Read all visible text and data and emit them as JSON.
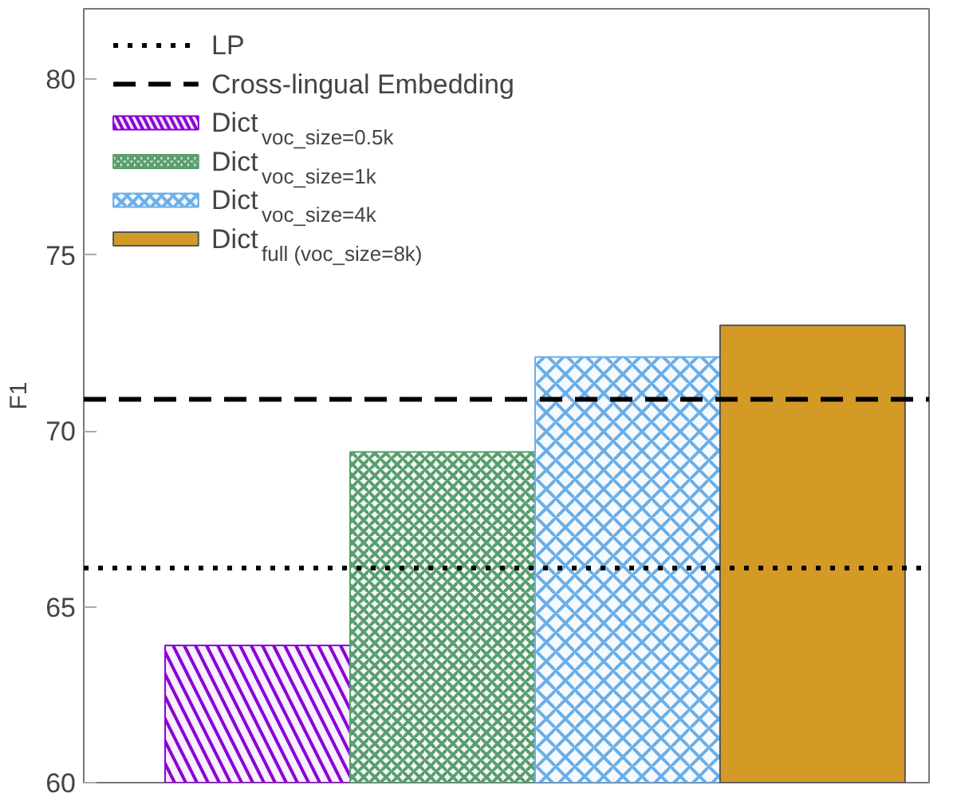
{
  "chart_data": {
    "type": "bar",
    "ylabel": "F1",
    "categories": [
      null,
      null,
      null,
      null
    ],
    "series": [
      {
        "name": "Dict$_{voc_size=0.5k}$",
        "color": "#8a00d4",
        "values": [
          63.9,
          null,
          null,
          null
        ]
      },
      {
        "name": "Dict$_{voc_size=1k}$",
        "color": "#5a9e6f",
        "values": [
          null,
          69.4,
          null,
          null
        ]
      },
      {
        "name": "Dict$_{voc_size=4k}$",
        "color": "#6aaee8",
        "values": [
          null,
          null,
          72.1,
          null
        ]
      },
      {
        "name": "Dict$_{full (voc_size=8k)}$",
        "color": "#d49a26",
        "values": [
          null,
          null,
          null,
          73.0
        ]
      }
    ],
    "ref_lines": [
      {
        "axis": "y",
        "value": 66.1,
        "label": "LP",
        "line_style": "dotted",
        "color": "#000000"
      },
      {
        "axis": "y",
        "value": 70.9,
        "label": "Cross-lingual Embedding",
        "line_style": "dashed",
        "color": "#000000"
      }
    ],
    "ylim": [
      60,
      82
    ],
    "yticks": [
      60,
      65,
      70,
      75,
      80
    ],
    "grid": false,
    "legend": "top left",
    "tick_labels": "y"
  }
}
